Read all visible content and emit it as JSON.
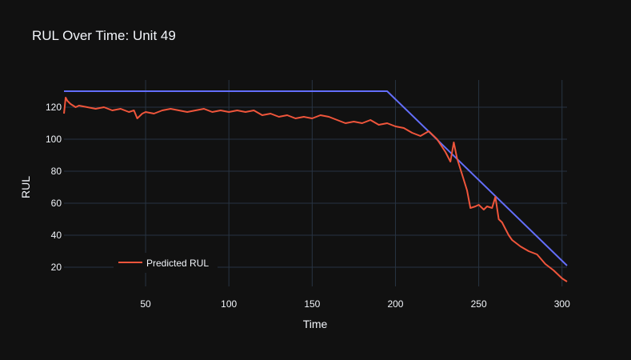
{
  "chart_data": {
    "type": "line",
    "title": "RUL Over Time: Unit 49",
    "xlabel": "Time",
    "ylabel": "RUL",
    "xlim": [
      1,
      303
    ],
    "ylim": [
      8,
      137
    ],
    "x_ticks": [
      50,
      100,
      150,
      200,
      250,
      300
    ],
    "y_ticks": [
      20,
      40,
      60,
      80,
      100,
      120
    ],
    "grid": true,
    "legend_position": "bottom-left",
    "background": "#111111",
    "grid_color": "#283442",
    "series": [
      {
        "name": "",
        "color": "#636efa",
        "x": [
          1,
          195,
          303
        ],
        "y": [
          130,
          130,
          21
        ]
      },
      {
        "name": "Predicted RUL",
        "color": "#ef553b",
        "x": [
          1,
          2,
          3,
          5,
          8,
          10,
          15,
          20,
          25,
          30,
          35,
          40,
          43,
          45,
          48,
          50,
          55,
          60,
          65,
          70,
          75,
          80,
          85,
          90,
          95,
          100,
          105,
          110,
          115,
          120,
          125,
          130,
          135,
          140,
          145,
          150,
          155,
          160,
          165,
          170,
          175,
          180,
          185,
          190,
          195,
          200,
          205,
          210,
          215,
          220,
          225,
          230,
          233,
          235,
          237,
          240,
          243,
          245,
          248,
          250,
          253,
          255,
          258,
          260,
          262,
          264,
          266,
          268,
          270,
          275,
          280,
          285,
          290,
          295,
          300,
          303
        ],
        "y": [
          116,
          126,
          124,
          122,
          120,
          121,
          120,
          119,
          120,
          118,
          119,
          117,
          118,
          113,
          116,
          117,
          116,
          118,
          119,
          118,
          117,
          118,
          119,
          117,
          118,
          117,
          118,
          117,
          118,
          115,
          116,
          114,
          115,
          113,
          114,
          113,
          115,
          114,
          112,
          110,
          111,
          110,
          112,
          109,
          110,
          108,
          107,
          104,
          102,
          105,
          100,
          92,
          86,
          98,
          88,
          78,
          68,
          57,
          58,
          59,
          56,
          58,
          57,
          64,
          50,
          48,
          44,
          40,
          37,
          33,
          30,
          28,
          22,
          18,
          13,
          11
        ]
      }
    ]
  }
}
